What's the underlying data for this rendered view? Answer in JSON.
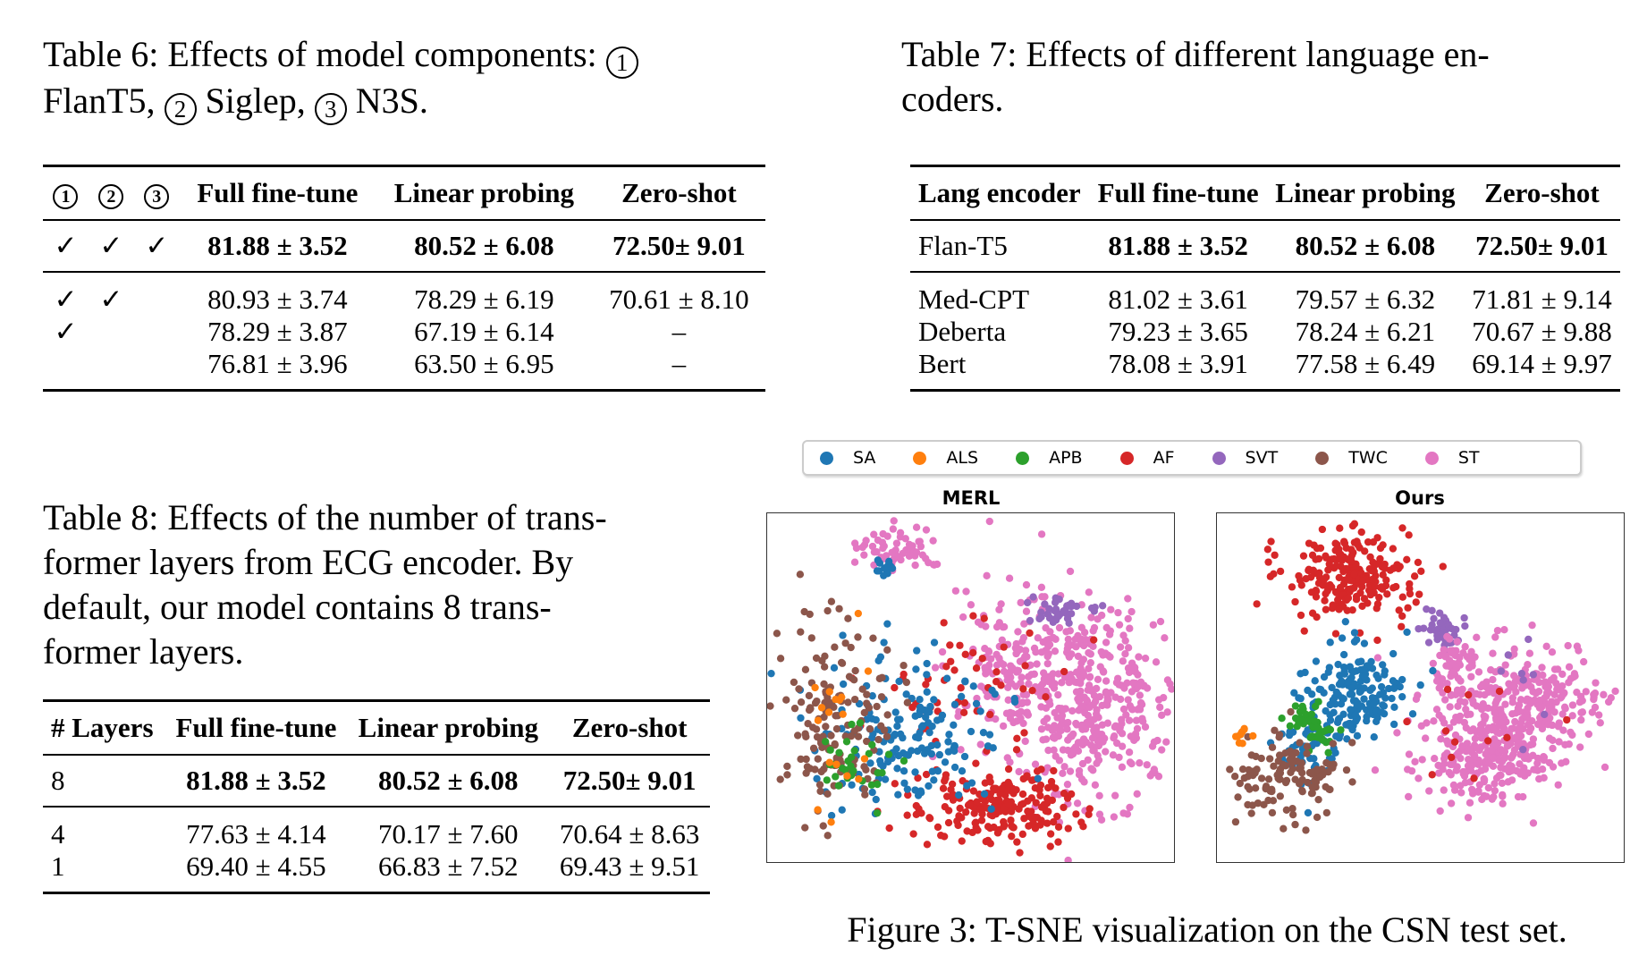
{
  "table6": {
    "caption_prefix": "Table 6:  Effects of model components:",
    "caption_c1": "1",
    "caption_after1": "FlanT5,",
    "caption_c2": "2",
    "caption_after2": "Siglep,",
    "caption_c3": "3",
    "caption_after3": "N3S.",
    "headers": [
      "1",
      "2",
      "3",
      "Full fine-tune",
      "Linear probing",
      "Zero-shot"
    ],
    "rows": [
      [
        "✓",
        "✓",
        "✓",
        "81.88 ± 3.52",
        "80.52 ± 6.08",
        "72.50± 9.01"
      ],
      [
        "✓",
        "✓",
        "",
        "80.93 ± 3.74",
        "78.29 ± 6.19",
        "70.61 ± 8.10"
      ],
      [
        "✓",
        "",
        "",
        "78.29 ± 3.87",
        "67.19 ± 6.14",
        "–"
      ],
      [
        "",
        "",
        "",
        "76.81 ± 3.96",
        "63.50 ± 6.95",
        "–"
      ]
    ]
  },
  "table7": {
    "caption": "Table 7:  Effects of different language encoders.",
    "caption_line1": "Table 7:  Effects of different language en-",
    "caption_line2": "coders.",
    "headers": [
      "Lang encoder",
      "Full fine-tune",
      "Linear probing",
      "Zero-shot"
    ],
    "rows": [
      [
        "Flan-T5",
        "81.88 ± 3.52",
        "80.52 ± 6.08",
        "72.50± 9.01"
      ],
      [
        "Med-CPT",
        "81.02 ± 3.61",
        "79.57 ± 6.32",
        "71.81 ± 9.14"
      ],
      [
        "Deberta",
        "79.23 ± 3.65",
        "78.24 ± 6.21",
        "70.67 ± 9.88"
      ],
      [
        "Bert",
        "78.08 ± 3.91",
        "77.58 ± 6.49",
        "69.14 ± 9.97"
      ]
    ]
  },
  "table8": {
    "caption_line1": "Table 8: Effects of the number of trans-",
    "caption_line2": "former layers from ECG encoder.  By",
    "caption_line3": "default,  our  model  contains  8  trans-",
    "caption_line4": "former layers.",
    "headers": [
      "# Layers",
      "Full fine-tune",
      "Linear probing",
      "Zero-shot"
    ],
    "rows": [
      [
        "8",
        "81.88 ± 3.52",
        "80.52 ± 6.08",
        "72.50± 9.01"
      ],
      [
        "4",
        "77.63 ± 4.14",
        "70.17 ± 7.60",
        "70.64 ± 8.63"
      ],
      [
        "1",
        "69.40 ± 4.55",
        "66.83 ± 7.52",
        "69.43 ± 9.51"
      ]
    ]
  },
  "figure": {
    "caption": "Figure 3: T-SNE visualization on the CSN test set.",
    "legend": [
      {
        "label": "SA",
        "color": "#1f77b4"
      },
      {
        "label": "ALS",
        "color": "#ff7f0e"
      },
      {
        "label": "APB",
        "color": "#2ca02c"
      },
      {
        "label": "AF",
        "color": "#d62728"
      },
      {
        "label": "SVT",
        "color": "#9467bd"
      },
      {
        "label": "TWC",
        "color": "#8c564b"
      },
      {
        "label": "ST",
        "color": "#e377c2"
      }
    ],
    "panel_titles": [
      "MERL",
      "Ours"
    ]
  }
}
